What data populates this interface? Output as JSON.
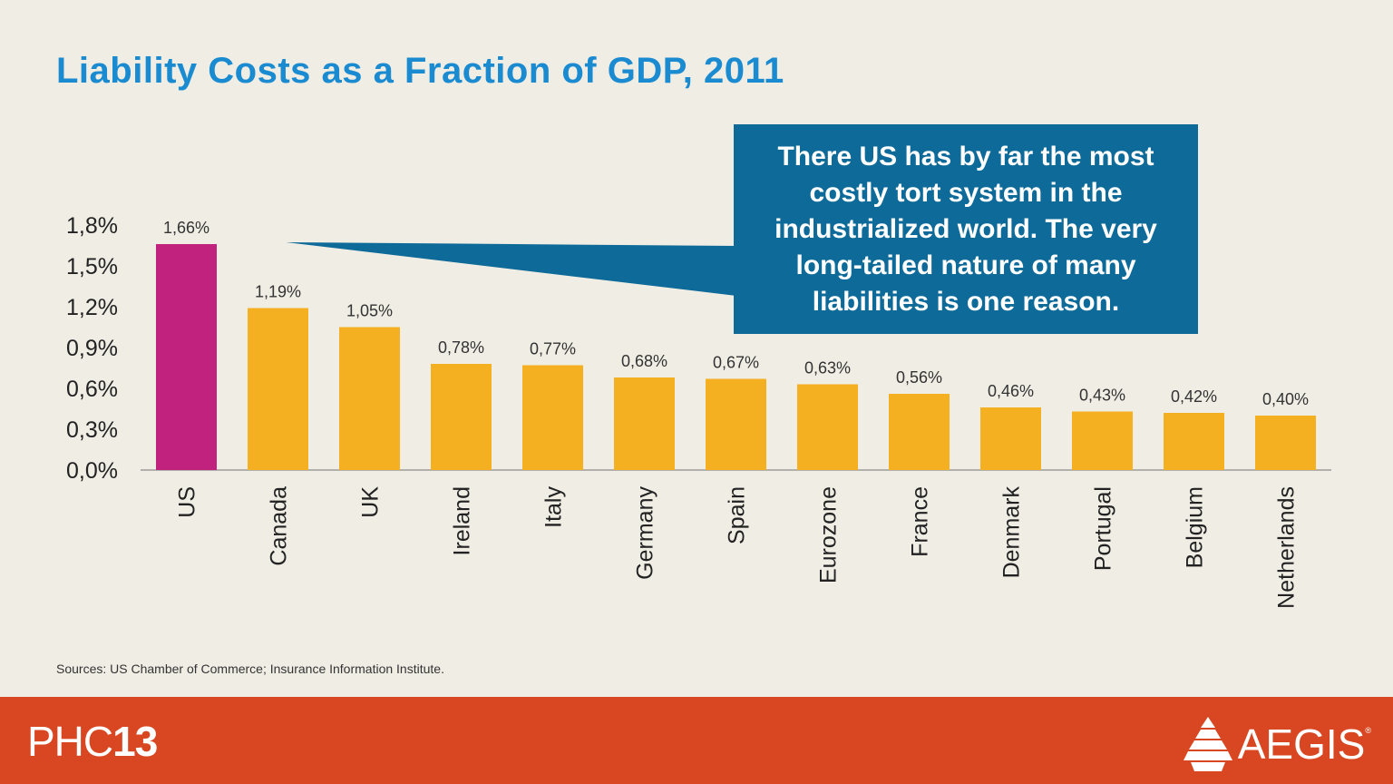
{
  "title": "Liability Costs as a Fraction of GDP, 2011",
  "callout": "There US has by far the most costly tort system in the industrialized world.  The very long-tailed nature of many liabilities is one reason.",
  "sources": "Sources:  US Chamber of Commerce; Insurance Information Institute.",
  "footer": {
    "event_prefix": "PHC",
    "event_number": "13",
    "brand": "AEGIS",
    "registered_mark": "®"
  },
  "colors": {
    "highlight_bar": "#c0227e",
    "bar": "#f5b021",
    "callout_bg": "#0d6a99",
    "title": "#1a8bd0",
    "footer": "#d84721"
  },
  "chart_data": {
    "type": "bar",
    "title": "Liability Costs as a Fraction of GDP, 2011",
    "categories": [
      "US",
      "Canada",
      "UK",
      "Ireland",
      "Italy",
      "Germany",
      "Spain",
      "Eurozone",
      "France",
      "Denmark",
      "Portugal",
      "Belgium",
      "Netherlands"
    ],
    "values": [
      1.66,
      1.19,
      1.05,
      0.78,
      0.77,
      0.68,
      0.67,
      0.63,
      0.56,
      0.46,
      0.43,
      0.42,
      0.4
    ],
    "data_labels": [
      "1,66%",
      "1,19%",
      "1,05%",
      "0,78%",
      "0,77%",
      "0,68%",
      "0,67%",
      "0,63%",
      "0,56%",
      "0,46%",
      "0,43%",
      "0,42%",
      "0,40%"
    ],
    "highlight_index": 0,
    "ylim": [
      0,
      1.8
    ],
    "yticks": [
      0,
      0.3,
      0.6,
      0.9,
      1.2,
      1.5,
      1.8
    ],
    "ytick_labels": [
      "0,0%",
      "0,3%",
      "0,6%",
      "0,9%",
      "1,2%",
      "1,5%",
      "1,8%"
    ],
    "xlabel": "",
    "ylabel": "",
    "grid": false,
    "legend": "none"
  }
}
